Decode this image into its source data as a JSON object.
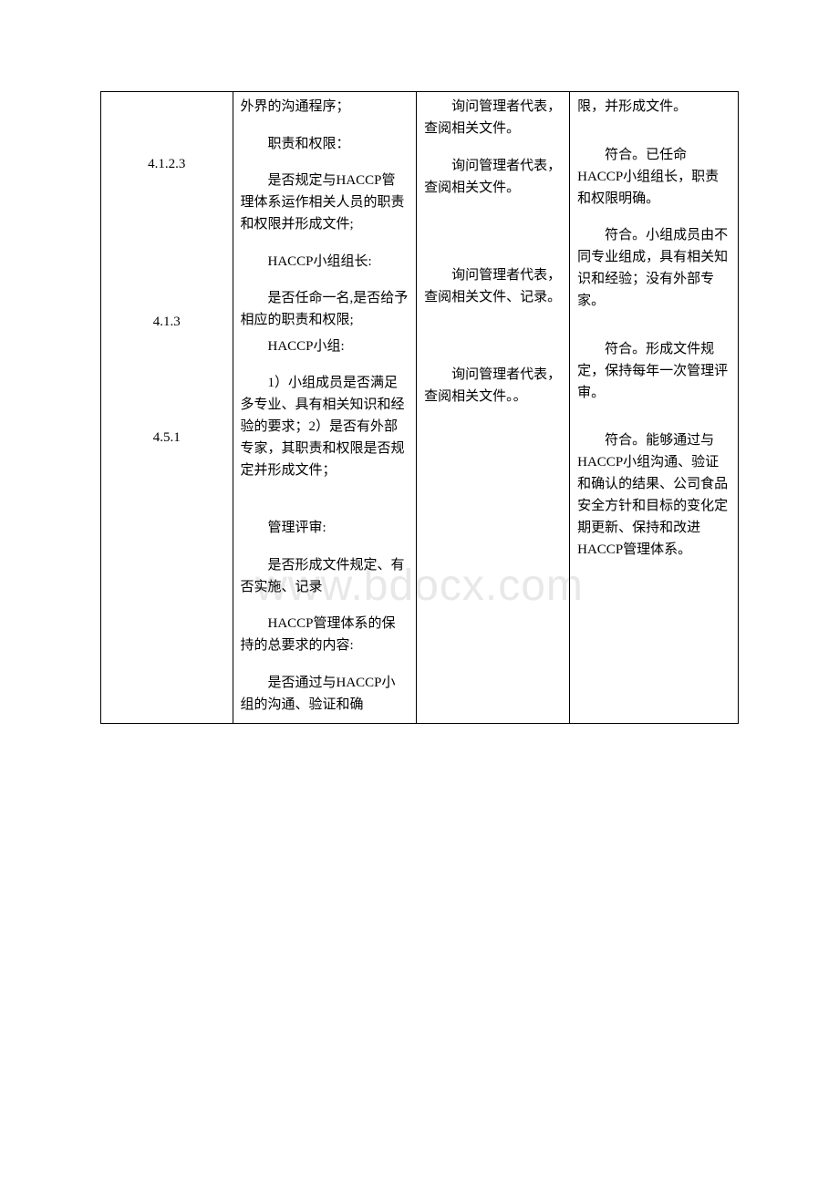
{
  "watermark": "www.bdocx.com",
  "table": {
    "col1": {
      "sections": [
        "4.1.2.3",
        "4.1.3",
        "4.5.1"
      ]
    },
    "col2": {
      "p1": "外界的沟通程序；",
      "p2": "职责和权限：",
      "p3": "是否规定与HACCP管理体系运作相关人员的职责和权限并形成文件;",
      "p4": "HACCP小组组长:",
      "p5": "是否任命一名,是否给予相应的职责和权限;",
      "p6": "HACCP小组:",
      "p7": "1）小组成员是否满足多专业、具有相关知识和经验的要求；2）是否有外部专家，其职责和权限是否规定并形成文件；",
      "p8": "管理评审:",
      "p9": "是否形成文件规定、有否实施、记录",
      "p10": "HACCP管理体系的保持的总要求的内容:",
      "p11": "是否通过与HACCP小组的沟通、验证和确"
    },
    "col3": {
      "p1": "询问管理者代表，查阅相关文件。",
      "p2": "询问管理者代表，查阅相关文件。",
      "p3": "询问管理者代表，查阅相关文件、记录。",
      "p4": "询问管理者代表，查阅相关文件。。"
    },
    "col4": {
      "p1": "限，并形成文件。",
      "p2": "符合。已任命HACCP小组组长，职责和权限明确。",
      "p3": "符合。小组成员由不同专业组成，具有相关知识和经验；没有外部专家。",
      "p4": "符合。形成文件规定，保持每年一次管理评审。",
      "p5": "符合。能够通过与HACCP小组沟通、验证和确认的结果、公司食品安全方针和目标的变化定期更新、保持和改进HACCP管理体系。"
    }
  }
}
